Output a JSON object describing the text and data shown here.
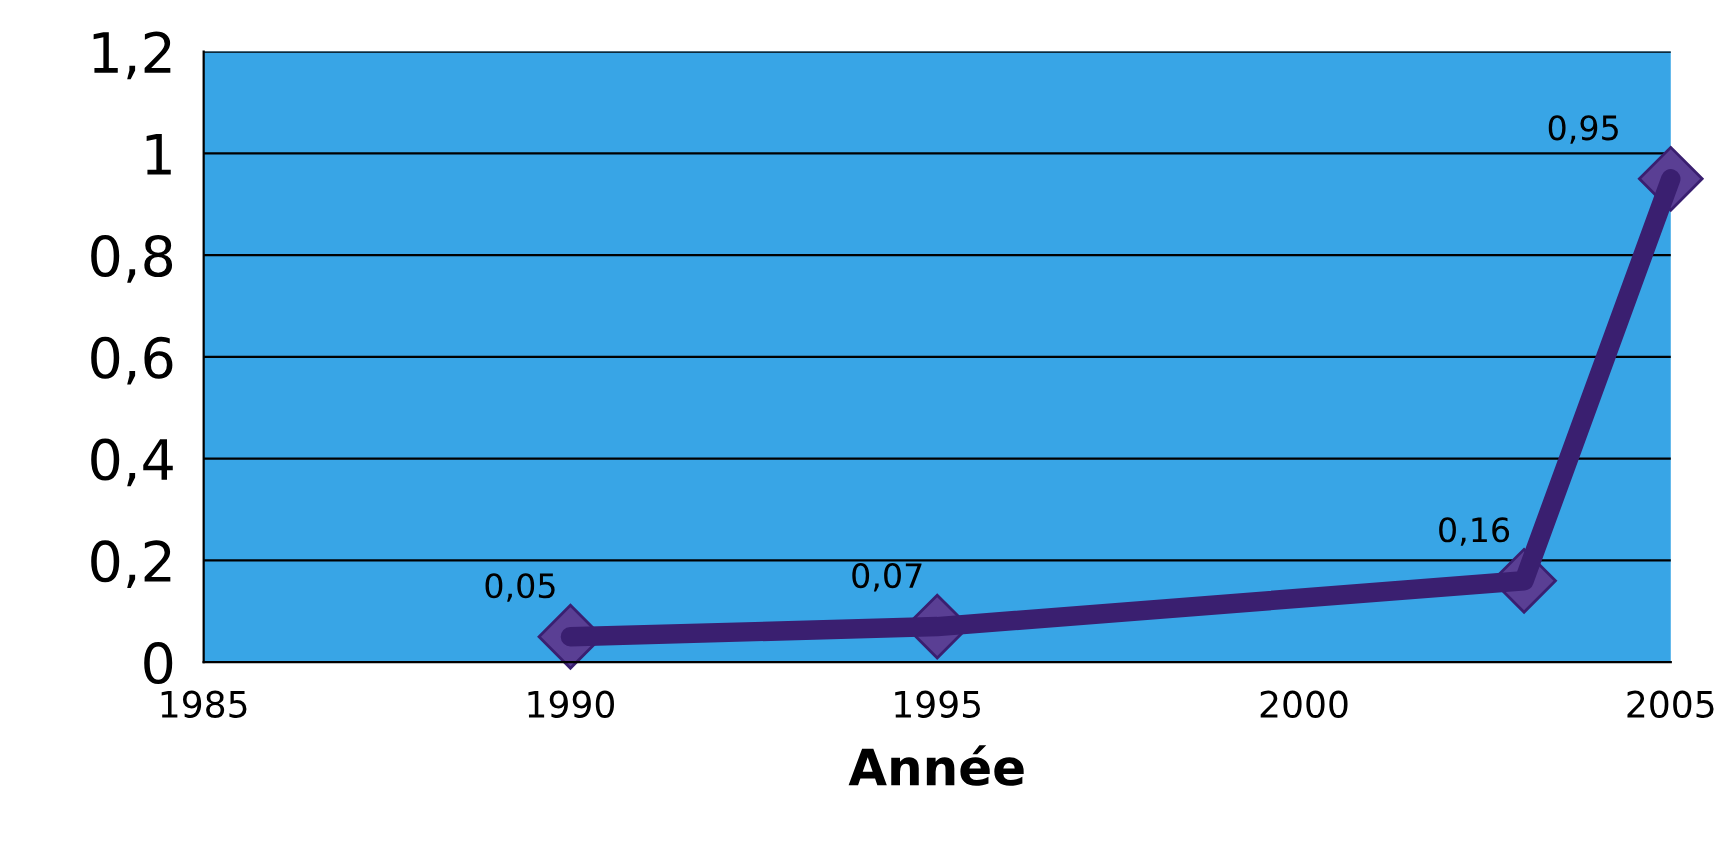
{
  "chart_data": {
    "type": "line",
    "xlabel": "Année",
    "x": [
      1990,
      1995,
      2003,
      2005
    ],
    "series": [
      {
        "color": "#3a1f70",
        "values": [
          0.05,
          0.07,
          0.16,
          0.95
        ],
        "value_labels": [
          "0,05",
          "0,07",
          "0,16",
          "0,95"
        ]
      }
    ],
    "xlim": [
      1985,
      2005
    ],
    "xticks": [
      1985,
      1990,
      1995,
      2000,
      2005
    ],
    "ylim": [
      0,
      1.2
    ],
    "yticks": [
      0,
      {
        "value": 0.2,
        "label": "0,2"
      },
      {
        "value": 0.4,
        "label": "0,4"
      },
      {
        "value": 0.6,
        "label": "0,6"
      },
      {
        "value": 0.8,
        "label": "0,8"
      },
      1,
      {
        "value": 1.2,
        "label": "1,2"
      }
    ],
    "grid": "y",
    "marker": "diamond",
    "line_style": "solid",
    "legend": false
  }
}
